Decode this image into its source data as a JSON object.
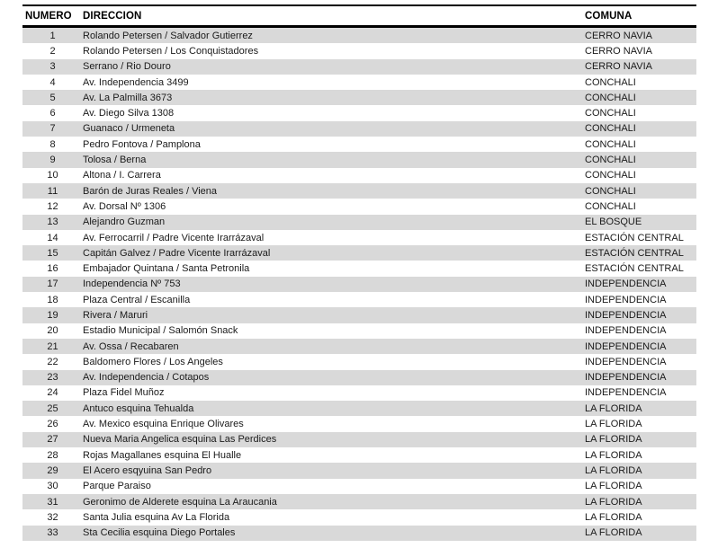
{
  "table": {
    "columns": [
      "NUMERO",
      "DIRECCION",
      "COMUNA"
    ],
    "rows": [
      {
        "numero": "1",
        "direccion": "Rolando Petersen / Salvador Gutierrez",
        "comuna": "CERRO NAVIA"
      },
      {
        "numero": "2",
        "direccion": "Rolando Petersen / Los Conquistadores",
        "comuna": "CERRO NAVIA"
      },
      {
        "numero": "3",
        "direccion": "Serrano / Rio Douro",
        "comuna": "CERRO NAVIA"
      },
      {
        "numero": "4",
        "direccion": "Av. Independencia 3499",
        "comuna": "CONCHALI"
      },
      {
        "numero": "5",
        "direccion": "Av. La Palmilla 3673",
        "comuna": "CONCHALI"
      },
      {
        "numero": "6",
        "direccion": "Av. Diego Silva 1308",
        "comuna": "CONCHALI"
      },
      {
        "numero": "7",
        "direccion": "Guanaco / Urmeneta",
        "comuna": "CONCHALI"
      },
      {
        "numero": "8",
        "direccion": "Pedro Fontova / Pamplona",
        "comuna": "CONCHALI"
      },
      {
        "numero": "9",
        "direccion": "Tolosa / Berna",
        "comuna": "CONCHALI"
      },
      {
        "numero": "10",
        "direccion": "Altona / I. Carrera",
        "comuna": "CONCHALI"
      },
      {
        "numero": "11",
        "direccion": "Barón de Juras Reales / Viena",
        "comuna": "CONCHALI"
      },
      {
        "numero": "12",
        "direccion": "Av. Dorsal Nº 1306",
        "comuna": "CONCHALI"
      },
      {
        "numero": "13",
        "direccion": "Alejandro Guzman",
        "comuna": "EL BOSQUE"
      },
      {
        "numero": "14",
        "direccion": "Av. Ferrocarril / Padre Vicente Irarrázaval",
        "comuna": "ESTACIÓN CENTRAL"
      },
      {
        "numero": "15",
        "direccion": "Capitán Galvez / Padre Vicente Irarrázaval",
        "comuna": "ESTACIÓN CENTRAL"
      },
      {
        "numero": "16",
        "direccion": "Embajador Quintana / Santa Petronila",
        "comuna": "ESTACIÓN CENTRAL"
      },
      {
        "numero": "17",
        "direccion": "Independencia Nº 753",
        "comuna": "INDEPENDENCIA"
      },
      {
        "numero": "18",
        "direccion": "Plaza Central / Escanilla",
        "comuna": "INDEPENDENCIA"
      },
      {
        "numero": "19",
        "direccion": "Rivera / Maruri",
        "comuna": "INDEPENDENCIA"
      },
      {
        "numero": "20",
        "direccion": "Estadio Municipal / Salomón Snack",
        "comuna": "INDEPENDENCIA"
      },
      {
        "numero": "21",
        "direccion": "Av. Ossa / Recabaren",
        "comuna": "INDEPENDENCIA"
      },
      {
        "numero": "22",
        "direccion": "Baldomero Flores / Los Angeles",
        "comuna": "INDEPENDENCIA"
      },
      {
        "numero": "23",
        "direccion": "Av. Independencia / Cotapos",
        "comuna": "INDEPENDENCIA"
      },
      {
        "numero": "24",
        "direccion": "Plaza Fidel Muñoz",
        "comuna": "INDEPENDENCIA"
      },
      {
        "numero": "25",
        "direccion": "Antuco esquina Tehualda",
        "comuna": "LA FLORIDA"
      },
      {
        "numero": "26",
        "direccion": "Av. Mexico esquina Enrique Olivares",
        "comuna": "LA FLORIDA"
      },
      {
        "numero": "27",
        "direccion": "Nueva Maria Angelica esquina Las Perdices",
        "comuna": "LA FLORIDA"
      },
      {
        "numero": "28",
        "direccion": "Rojas Magallanes esquina El Hualle",
        "comuna": "LA FLORIDA"
      },
      {
        "numero": "29",
        "direccion": "El Acero esqyuina San Pedro",
        "comuna": "LA FLORIDA"
      },
      {
        "numero": "30",
        "direccion": "Parque Paraiso",
        "comuna": "LA FLORIDA"
      },
      {
        "numero": "31",
        "direccion": "Geronimo de Alderete esquina La Araucania",
        "comuna": "LA FLORIDA"
      },
      {
        "numero": "32",
        "direccion": "Santa Julia esquina Av La Florida",
        "comuna": "LA FLORIDA"
      },
      {
        "numero": "33",
        "direccion": "Sta Cecilia esquina Diego Portales",
        "comuna": "LA FLORIDA"
      }
    ]
  },
  "colors": {
    "stripe_row_background": "#d9d9d9",
    "border": "#000000",
    "text": "#1a1a1a",
    "page_background": "#ffffff"
  }
}
